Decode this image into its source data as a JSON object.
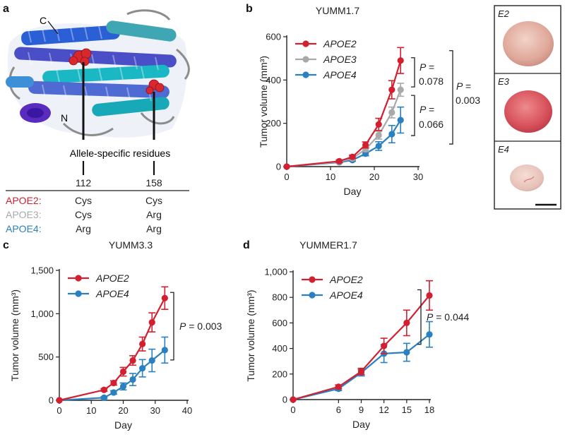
{
  "panels": {
    "a": {
      "letter": "a",
      "c_label": "C",
      "n_label": "N",
      "residue_caption": "Allele-specific residues",
      "positions": [
        "112",
        "158"
      ],
      "rows": [
        {
          "allele": "APOE2:",
          "r112": "Cys",
          "r158": "Cys",
          "color": "#d22030"
        },
        {
          "allele": "APOE3:",
          "r112": "Cys",
          "r158": "Arg",
          "color": "#a9a9a9"
        },
        {
          "allele": "APOE4:",
          "r112": "Arg",
          "r158": "Arg",
          "color": "#2a80c0"
        }
      ]
    },
    "b": {
      "letter": "b"
    },
    "c": {
      "letter": "c"
    },
    "d": {
      "letter": "d"
    },
    "photos": {
      "labels": [
        "E2",
        "E3",
        "E4"
      ]
    }
  },
  "colors": {
    "apoe2": "#d22030",
    "apoe3": "#a9a9a9",
    "apoe4": "#2a80c0"
  },
  "chart_data": [
    {
      "id": "b",
      "type": "line",
      "title": "YUMM1.7",
      "xlabel": "Day",
      "ylabel": "Tumor volume (mm³)",
      "xlim": [
        0,
        30
      ],
      "ylim": [
        0,
        600
      ],
      "xticks": [
        0,
        10,
        20,
        30
      ],
      "yticks": [
        0,
        200,
        400,
        600
      ],
      "ytick_labels": [
        "0",
        "200",
        "400",
        "600"
      ],
      "legend": "top-left",
      "series": [
        {
          "name": "APOE2",
          "color": "#d22030",
          "x": [
            0,
            12,
            15,
            18,
            21,
            24,
            26
          ],
          "y": [
            0,
            25,
            45,
            100,
            195,
            355,
            490
          ],
          "err": [
            0,
            6,
            8,
            14,
            28,
            42,
            60
          ]
        },
        {
          "name": "APOE3",
          "color": "#a9a9a9",
          "x": [
            0,
            12,
            15,
            18,
            21,
            24,
            26
          ],
          "y": [
            0,
            22,
            38,
            80,
            145,
            250,
            355
          ],
          "err": [
            0,
            5,
            6,
            10,
            18,
            25,
            30
          ]
        },
        {
          "name": "APOE4",
          "color": "#2a80c0",
          "x": [
            0,
            12,
            15,
            18,
            21,
            24,
            26
          ],
          "y": [
            0,
            20,
            30,
            60,
            95,
            150,
            215
          ],
          "err": [
            0,
            4,
            5,
            10,
            20,
            40,
            60
          ]
        }
      ],
      "annotations": [
        {
          "p": "P =",
          "value": "0.078",
          "between": [
            "APOE2",
            "APOE3"
          ]
        },
        {
          "p": "P =",
          "value": "0.066",
          "between": [
            "APOE3",
            "APOE4"
          ]
        },
        {
          "p": "P =",
          "value": "0.003",
          "between": [
            "APOE2",
            "APOE4"
          ]
        }
      ]
    },
    {
      "id": "c",
      "type": "line",
      "title": "YUMM3.3",
      "xlabel": "Day",
      "ylabel": "Tumor volume (mm³)",
      "xlim": [
        0,
        40
      ],
      "ylim": [
        0,
        1500
      ],
      "xticks": [
        0,
        10,
        20,
        30,
        40
      ],
      "yticks": [
        0,
        500,
        1000,
        1500
      ],
      "ytick_labels": [
        "0",
        "500",
        "1,000",
        "1,500"
      ],
      "legend": "top-left",
      "series": [
        {
          "name": "APOE2",
          "color": "#d22030",
          "x": [
            0,
            14,
            17,
            20,
            23,
            26,
            29,
            33
          ],
          "y": [
            0,
            120,
            200,
            330,
            460,
            650,
            900,
            1180
          ],
          "err": [
            0,
            15,
            25,
            50,
            55,
            80,
            110,
            130
          ]
        },
        {
          "name": "APOE4",
          "color": "#2a80c0",
          "x": [
            0,
            14,
            17,
            20,
            23,
            26,
            29,
            33
          ],
          "y": [
            0,
            30,
            90,
            160,
            240,
            370,
            460,
            580
          ],
          "err": [
            0,
            10,
            20,
            40,
            70,
            100,
            130,
            150
          ]
        }
      ],
      "annotations": [
        {
          "p": "P",
          "value": "= 0.003",
          "between": [
            "APOE2",
            "APOE4"
          ]
        }
      ]
    },
    {
      "id": "d",
      "type": "line",
      "title": "YUMMER1.7",
      "xlabel": "Day",
      "ylabel": "Tumor volume (mm³)",
      "xlim": [
        0,
        18
      ],
      "ylim": [
        0,
        1000
      ],
      "xticks": [
        0,
        6,
        9,
        12,
        15,
        18
      ],
      "yticks": [
        0,
        200,
        400,
        600,
        800,
        1000
      ],
      "ytick_labels": [
        "0",
        "200",
        "400",
        "600",
        "800",
        "1,000"
      ],
      "legend": "top-left",
      "series": [
        {
          "name": "APOE2",
          "color": "#d22030",
          "x": [
            0,
            6,
            9,
            12,
            15,
            18
          ],
          "y": [
            0,
            100,
            220,
            420,
            600,
            815
          ],
          "err": [
            0,
            15,
            25,
            60,
            100,
            115
          ]
        },
        {
          "name": "APOE4",
          "color": "#2a80c0",
          "x": [
            0,
            6,
            9,
            12,
            15,
            18
          ],
          "y": [
            0,
            85,
            210,
            360,
            370,
            510
          ],
          "err": [
            0,
            15,
            25,
            70,
            70,
            100
          ]
        }
      ],
      "annotations": [
        {
          "p": "P",
          "value": "= 0.044",
          "between": [
            "APOE2",
            "APOE4"
          ]
        }
      ]
    }
  ]
}
